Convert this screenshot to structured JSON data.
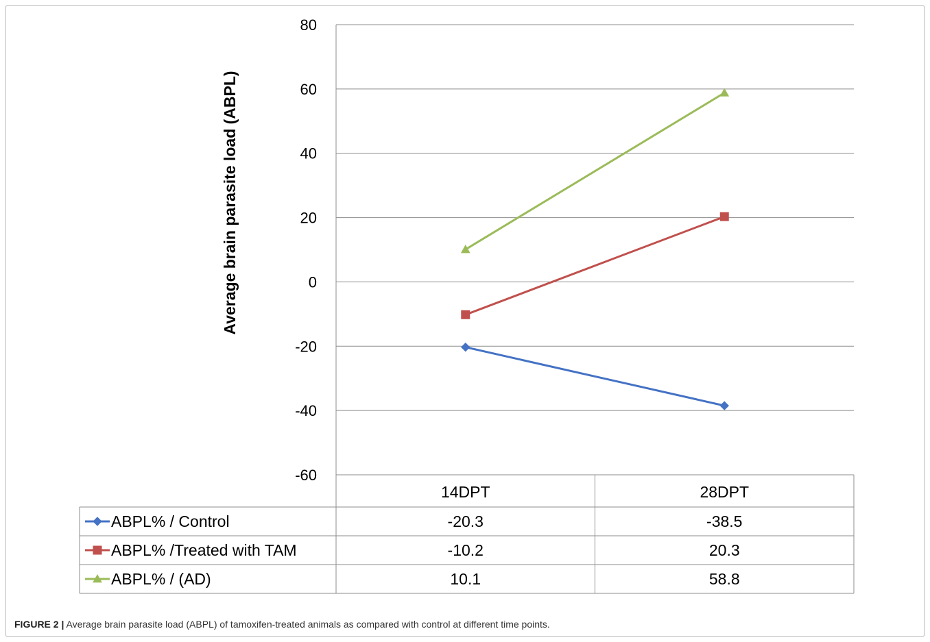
{
  "chart_data": {
    "type": "line",
    "ylabel": "Average brain parasite load (ABPL)",
    "xlabel": "",
    "ylim": [
      -60,
      80
    ],
    "yticks": [
      "80",
      "60",
      "40",
      "20",
      "0",
      "-20",
      "-40",
      "-60"
    ],
    "categories": [
      "14DPT",
      "28DPT"
    ],
    "series": [
      {
        "name": "ABPL% / Control",
        "values": [
          -20.3,
          -38.5
        ],
        "value_labels": [
          "-20.3",
          "-38.5"
        ],
        "color": "#4472c4",
        "marker": "diamond"
      },
      {
        "name": "ABPL% /Treated with TAM",
        "values": [
          -10.2,
          20.3
        ],
        "value_labels": [
          "-10.2",
          "20.3"
        ],
        "color": "#c0504d",
        "marker": "square"
      },
      {
        "name": "ABPL% / (AD)",
        "values": [
          10.1,
          58.8
        ],
        "value_labels": [
          "10.1",
          "58.8"
        ],
        "color": "#9bbb59",
        "marker": "triangle"
      }
    ],
    "grid": true,
    "legend": "data table below plot"
  },
  "caption": {
    "label": "FIGURE 2 |",
    "text": "Average brain parasite load (ABPL) of tamoxifen-treated animals as compared with control at different time points."
  }
}
